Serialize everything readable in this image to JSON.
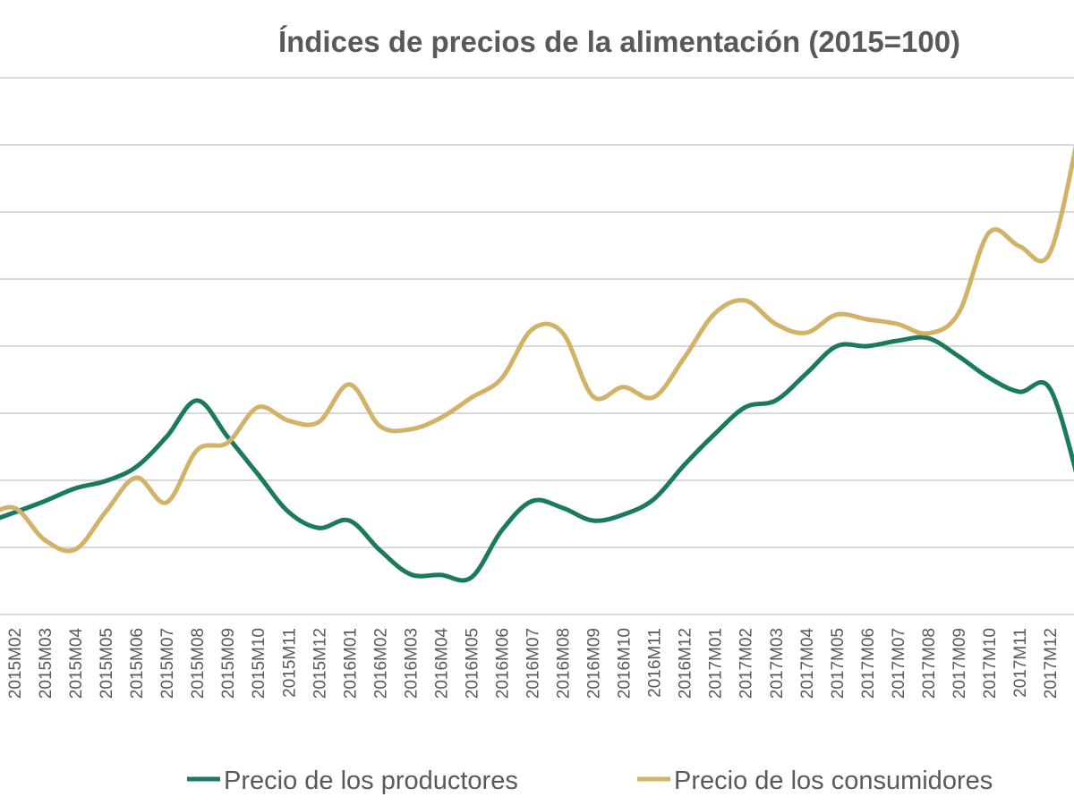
{
  "chart_data": {
    "type": "line",
    "title": "Índices de precios de la alimentación (2015=100)",
    "xlabel": "",
    "ylabel": "",
    "ylim": [
      96,
      104
    ],
    "grid": true,
    "smoothed": true,
    "legend_position": "bottom",
    "categories": [
      "2015M02",
      "2015M03",
      "2015M04",
      "2015M05",
      "2015M06",
      "2015M07",
      "2015M08",
      "2015M09",
      "2015M10",
      "2015M11",
      "2015M12",
      "2016M01",
      "2016M02",
      "2016M03",
      "2016M04",
      "2016M05",
      "2016M06",
      "2016M07",
      "2016M08",
      "2016M09",
      "2016M10",
      "2016M11",
      "2016M12",
      "2017M01",
      "2017M02",
      "2017M03",
      "2017M04",
      "2017M05",
      "2017M06",
      "2017M07",
      "2017M08",
      "2017M09",
      "2017M10",
      "2017M11",
      "2017M12"
    ],
    "series": [
      {
        "name": "Precio de los productores",
        "color": "#1a7a60",
        "left_edge_value": 97.36,
        "right_edge_value": 97.89,
        "values": [
          97.52,
          97.69,
          97.88,
          97.99,
          98.2,
          98.65,
          99.19,
          98.65,
          98.09,
          97.53,
          97.29,
          97.4,
          96.96,
          96.6,
          96.59,
          96.55,
          97.25,
          97.69,
          97.59,
          97.4,
          97.49,
          97.72,
          98.23,
          98.69,
          99.09,
          99.19,
          99.59,
          100.0,
          100.0,
          100.08,
          100.12,
          99.85,
          99.53,
          99.32,
          99.37
        ]
      },
      {
        "name": "Precio de los consumidores",
        "color": "#d2b266",
        "left_edge_value": 97.43,
        "right_edge_value": 103.29,
        "values": [
          97.59,
          97.11,
          96.97,
          97.53,
          98.04,
          97.67,
          98.45,
          98.56,
          99.09,
          98.89,
          98.87,
          99.43,
          98.81,
          98.76,
          98.93,
          99.23,
          99.52,
          100.25,
          100.2,
          99.25,
          99.39,
          99.24,
          99.83,
          100.49,
          100.68,
          100.33,
          100.2,
          100.47,
          100.4,
          100.33,
          100.19,
          100.49,
          101.69,
          101.49,
          101.39
        ]
      }
    ]
  }
}
